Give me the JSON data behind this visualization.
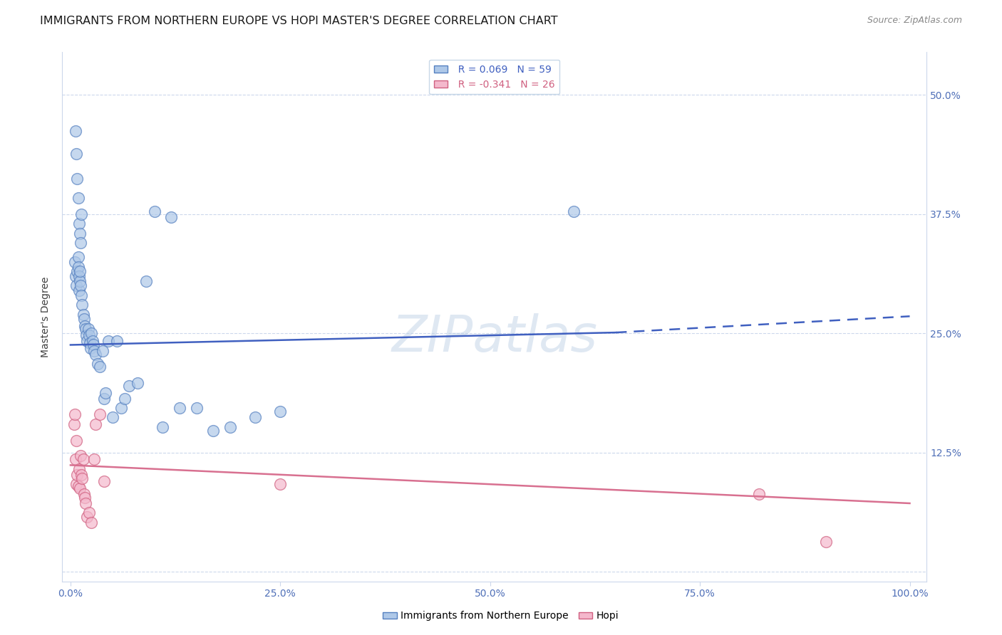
{
  "title": "IMMIGRANTS FROM NORTHERN EUROPE VS HOPI MASTER'S DEGREE CORRELATION CHART",
  "source": "Source: ZipAtlas.com",
  "ylabel": "Master's Degree",
  "yticks": [
    0.0,
    0.125,
    0.25,
    0.375,
    0.5
  ],
  "ytick_labels": [
    "",
    "12.5%",
    "25.0%",
    "37.5%",
    "50.0%"
  ],
  "xticks": [
    0.0,
    0.25,
    0.5,
    0.75,
    1.0
  ],
  "xtick_labels": [
    "0.0%",
    "25.0%",
    "50.0%",
    "75.0%",
    "100.0%"
  ],
  "xlim": [
    -0.01,
    1.02
  ],
  "ylim": [
    -0.01,
    0.545
  ],
  "legend_blue_r": "R = 0.069",
  "legend_blue_n": "N = 59",
  "legend_pink_r": "R = -0.341",
  "legend_pink_n": "N = 26",
  "legend_blue_label": "Immigrants from Northern Europe",
  "legend_pink_label": "Hopi",
  "blue_fill": "#aec8e8",
  "blue_edge": "#5580c0",
  "pink_fill": "#f4b8cc",
  "pink_edge": "#d06080",
  "blue_line_color": "#4060c0",
  "pink_line_color": "#d87090",
  "watermark": "ZIPatlas",
  "blue_scatter_x": [
    0.005,
    0.006,
    0.007,
    0.008,
    0.009,
    0.009,
    0.01,
    0.01,
    0.011,
    0.011,
    0.012,
    0.013,
    0.014,
    0.015,
    0.016,
    0.017,
    0.018,
    0.019,
    0.02,
    0.021,
    0.022,
    0.023,
    0.024,
    0.025,
    0.026,
    0.027,
    0.028,
    0.03,
    0.032,
    0.035,
    0.038,
    0.04,
    0.042,
    0.045,
    0.05,
    0.055,
    0.06,
    0.065,
    0.07,
    0.08,
    0.09,
    0.1,
    0.11,
    0.12,
    0.13,
    0.15,
    0.17,
    0.19,
    0.22,
    0.25,
    0.006,
    0.007,
    0.008,
    0.009,
    0.01,
    0.011,
    0.012,
    0.013,
    0.6
  ],
  "blue_scatter_y": [
    0.325,
    0.31,
    0.3,
    0.315,
    0.33,
    0.32,
    0.31,
    0.295,
    0.305,
    0.315,
    0.3,
    0.29,
    0.28,
    0.27,
    0.265,
    0.258,
    0.255,
    0.248,
    0.242,
    0.255,
    0.248,
    0.24,
    0.235,
    0.25,
    0.242,
    0.238,
    0.232,
    0.228,
    0.218,
    0.215,
    0.232,
    0.182,
    0.188,
    0.242,
    0.162,
    0.242,
    0.172,
    0.182,
    0.195,
    0.198,
    0.305,
    0.378,
    0.152,
    0.372,
    0.172,
    0.172,
    0.148,
    0.152,
    0.162,
    0.168,
    0.462,
    0.438,
    0.412,
    0.392,
    0.365,
    0.355,
    0.345,
    0.375,
    0.378
  ],
  "pink_scatter_x": [
    0.004,
    0.005,
    0.006,
    0.007,
    0.007,
    0.008,
    0.009,
    0.01,
    0.011,
    0.012,
    0.013,
    0.014,
    0.015,
    0.016,
    0.017,
    0.018,
    0.02,
    0.022,
    0.025,
    0.028,
    0.03,
    0.035,
    0.04,
    0.25,
    0.82,
    0.9
  ],
  "pink_scatter_y": [
    0.155,
    0.165,
    0.118,
    0.092,
    0.138,
    0.102,
    0.09,
    0.108,
    0.088,
    0.122,
    0.102,
    0.098,
    0.118,
    0.082,
    0.078,
    0.072,
    0.058,
    0.062,
    0.052,
    0.118,
    0.155,
    0.165,
    0.095,
    0.092,
    0.082,
    0.032
  ],
  "blue_line_y_start": 0.238,
  "blue_line_y_solid_end": 0.258,
  "blue_line_y_end": 0.268,
  "blue_line_solid_cutoff": 0.65,
  "pink_line_y_start": 0.112,
  "pink_line_y_end": 0.072,
  "title_fontsize": 11.5,
  "source_fontsize": 9,
  "ylabel_fontsize": 10,
  "tick_fontsize": 10,
  "legend_fontsize": 10,
  "watermark_fontsize": 52,
  "background_color": "#ffffff",
  "grid_color": "#ccd8ec",
  "tick_color": "#5070b8",
  "legend_text_blue": "#4060c0",
  "legend_text_pink": "#d06080"
}
